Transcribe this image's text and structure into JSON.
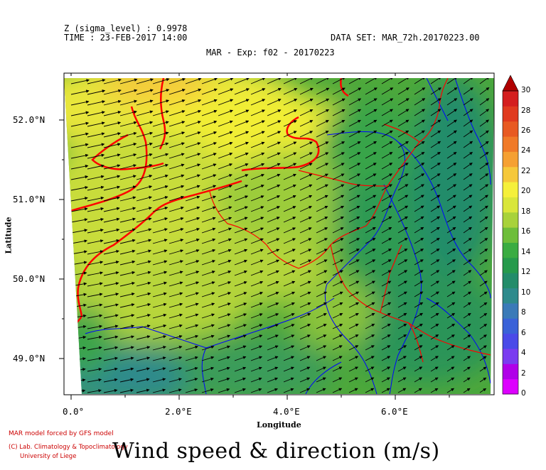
{
  "header": {
    "zline": "Z (sigma_level) : 0.9978",
    "timeline": "TIME : 23-FEB-2017 14:00",
    "dataset": "DATA SET: MAR_72h.20170223.00",
    "title": "MAR - Exp: f02 - 20170223"
  },
  "axes": {
    "ylabel": "Latitude",
    "xlabel": "Longitude",
    "yticks": [
      "52.0°N",
      "51.0°N",
      "50.0°N",
      "49.0°N"
    ],
    "xticks": [
      "0.0°",
      "2.0°E",
      "4.0°E",
      "6.0°E"
    ]
  },
  "colorbar": {
    "ticks": [
      "30",
      "28",
      "26",
      "24",
      "22",
      "20",
      "18",
      "16",
      "14",
      "12",
      "10",
      "8",
      "6",
      "4",
      "2",
      "0"
    ],
    "colors": [
      "#dd00ff",
      "#b000e8",
      "#7a3cf0",
      "#4a4ae8",
      "#3a62d8",
      "#3a7ab8",
      "#2e8a8c",
      "#238c6a",
      "#269a4c",
      "#3aac42",
      "#6ebe3a",
      "#a8d23a",
      "#d9e63a",
      "#f5f03a",
      "#f5c83a",
      "#f5a032",
      "#f07a28",
      "#e85a22",
      "#e03a1e",
      "#d41e1e",
      "#b00000"
    ]
  },
  "credits": {
    "line1": "MAR model forced by GFS model",
    "line2": "(C) Lab. Climatology & Topoclimatology",
    "line3": "University of Liege"
  },
  "main_title": "Wind speed & direction (m/s)",
  "map": {
    "field": "wind speed",
    "units": "m/s",
    "lon_range": [
      -0.2,
      7.8
    ],
    "lat_range": [
      48.5,
      52.5
    ],
    "wind_direction": "from west-southwest",
    "high_wind_region": "North Sea / western Belgium coast, ~18-22 m/s",
    "low_wind_region": "southeast Ardennes & Lorraine, ~8-12 m/s",
    "vector_color": "#000000",
    "border_color": "#ff0000",
    "river_color": "#0000ff"
  }
}
